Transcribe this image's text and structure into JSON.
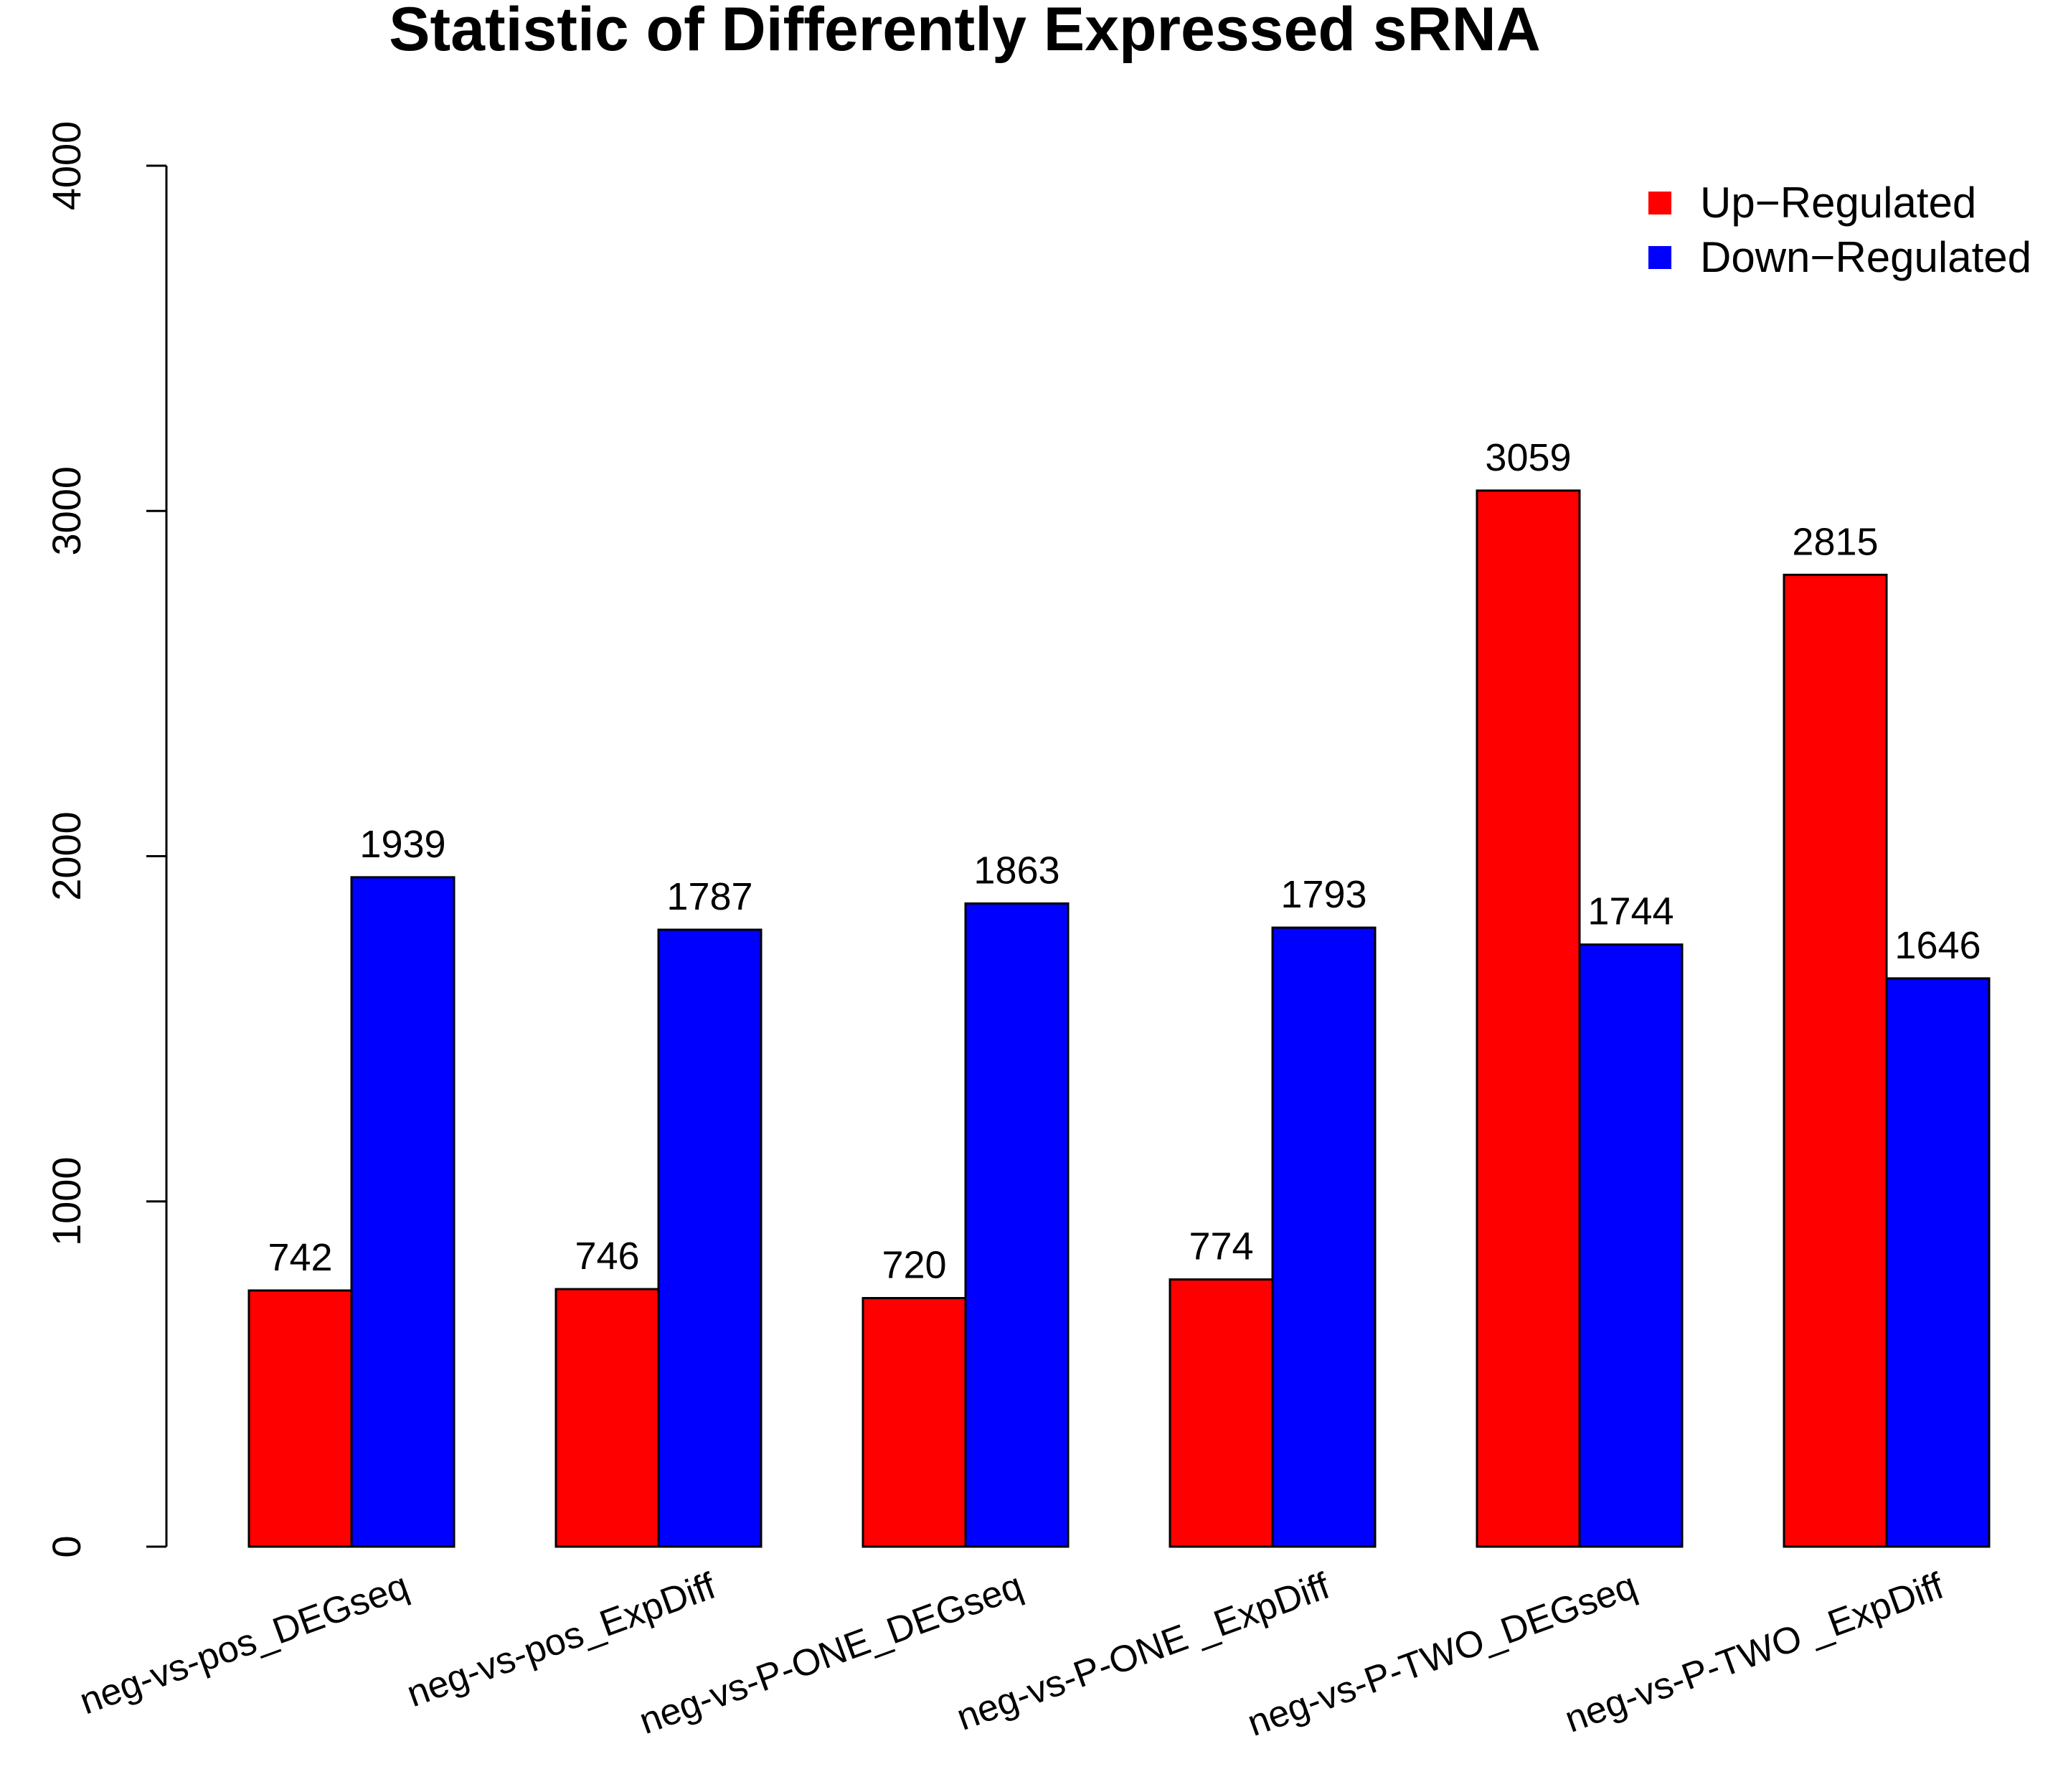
{
  "chart_data": {
    "type": "bar",
    "title": "Statistic of Differently Expressed sRNA",
    "xlabel": "",
    "ylabel": "",
    "ylim": [
      0,
      4000
    ],
    "yticks": [
      0,
      1000,
      2000,
      3000,
      4000
    ],
    "ytick_labels": [
      "0",
      "1000",
      "2000",
      "3000",
      "4000"
    ],
    "categories": [
      "neg-vs-pos_DEGseq",
      "neg-vs-pos_ExpDiff",
      "neg-vs-P-ONE_DEGseq",
      "neg-vs-P-ONE _ExpDiff",
      "neg-vs-P-TWO_DEGseq",
      "neg-vs-P-TWO _ExpDiff"
    ],
    "series": [
      {
        "name": "Up−Regulated",
        "color": "#ff0000",
        "values": [
          742,
          746,
          720,
          774,
          3059,
          2815
        ]
      },
      {
        "name": "Down−Regulated",
        "color": "#0000ff",
        "values": [
          1939,
          1787,
          1863,
          1793,
          1744,
          1646
        ]
      }
    ],
    "legend_position": "top-right",
    "grid": false
  }
}
